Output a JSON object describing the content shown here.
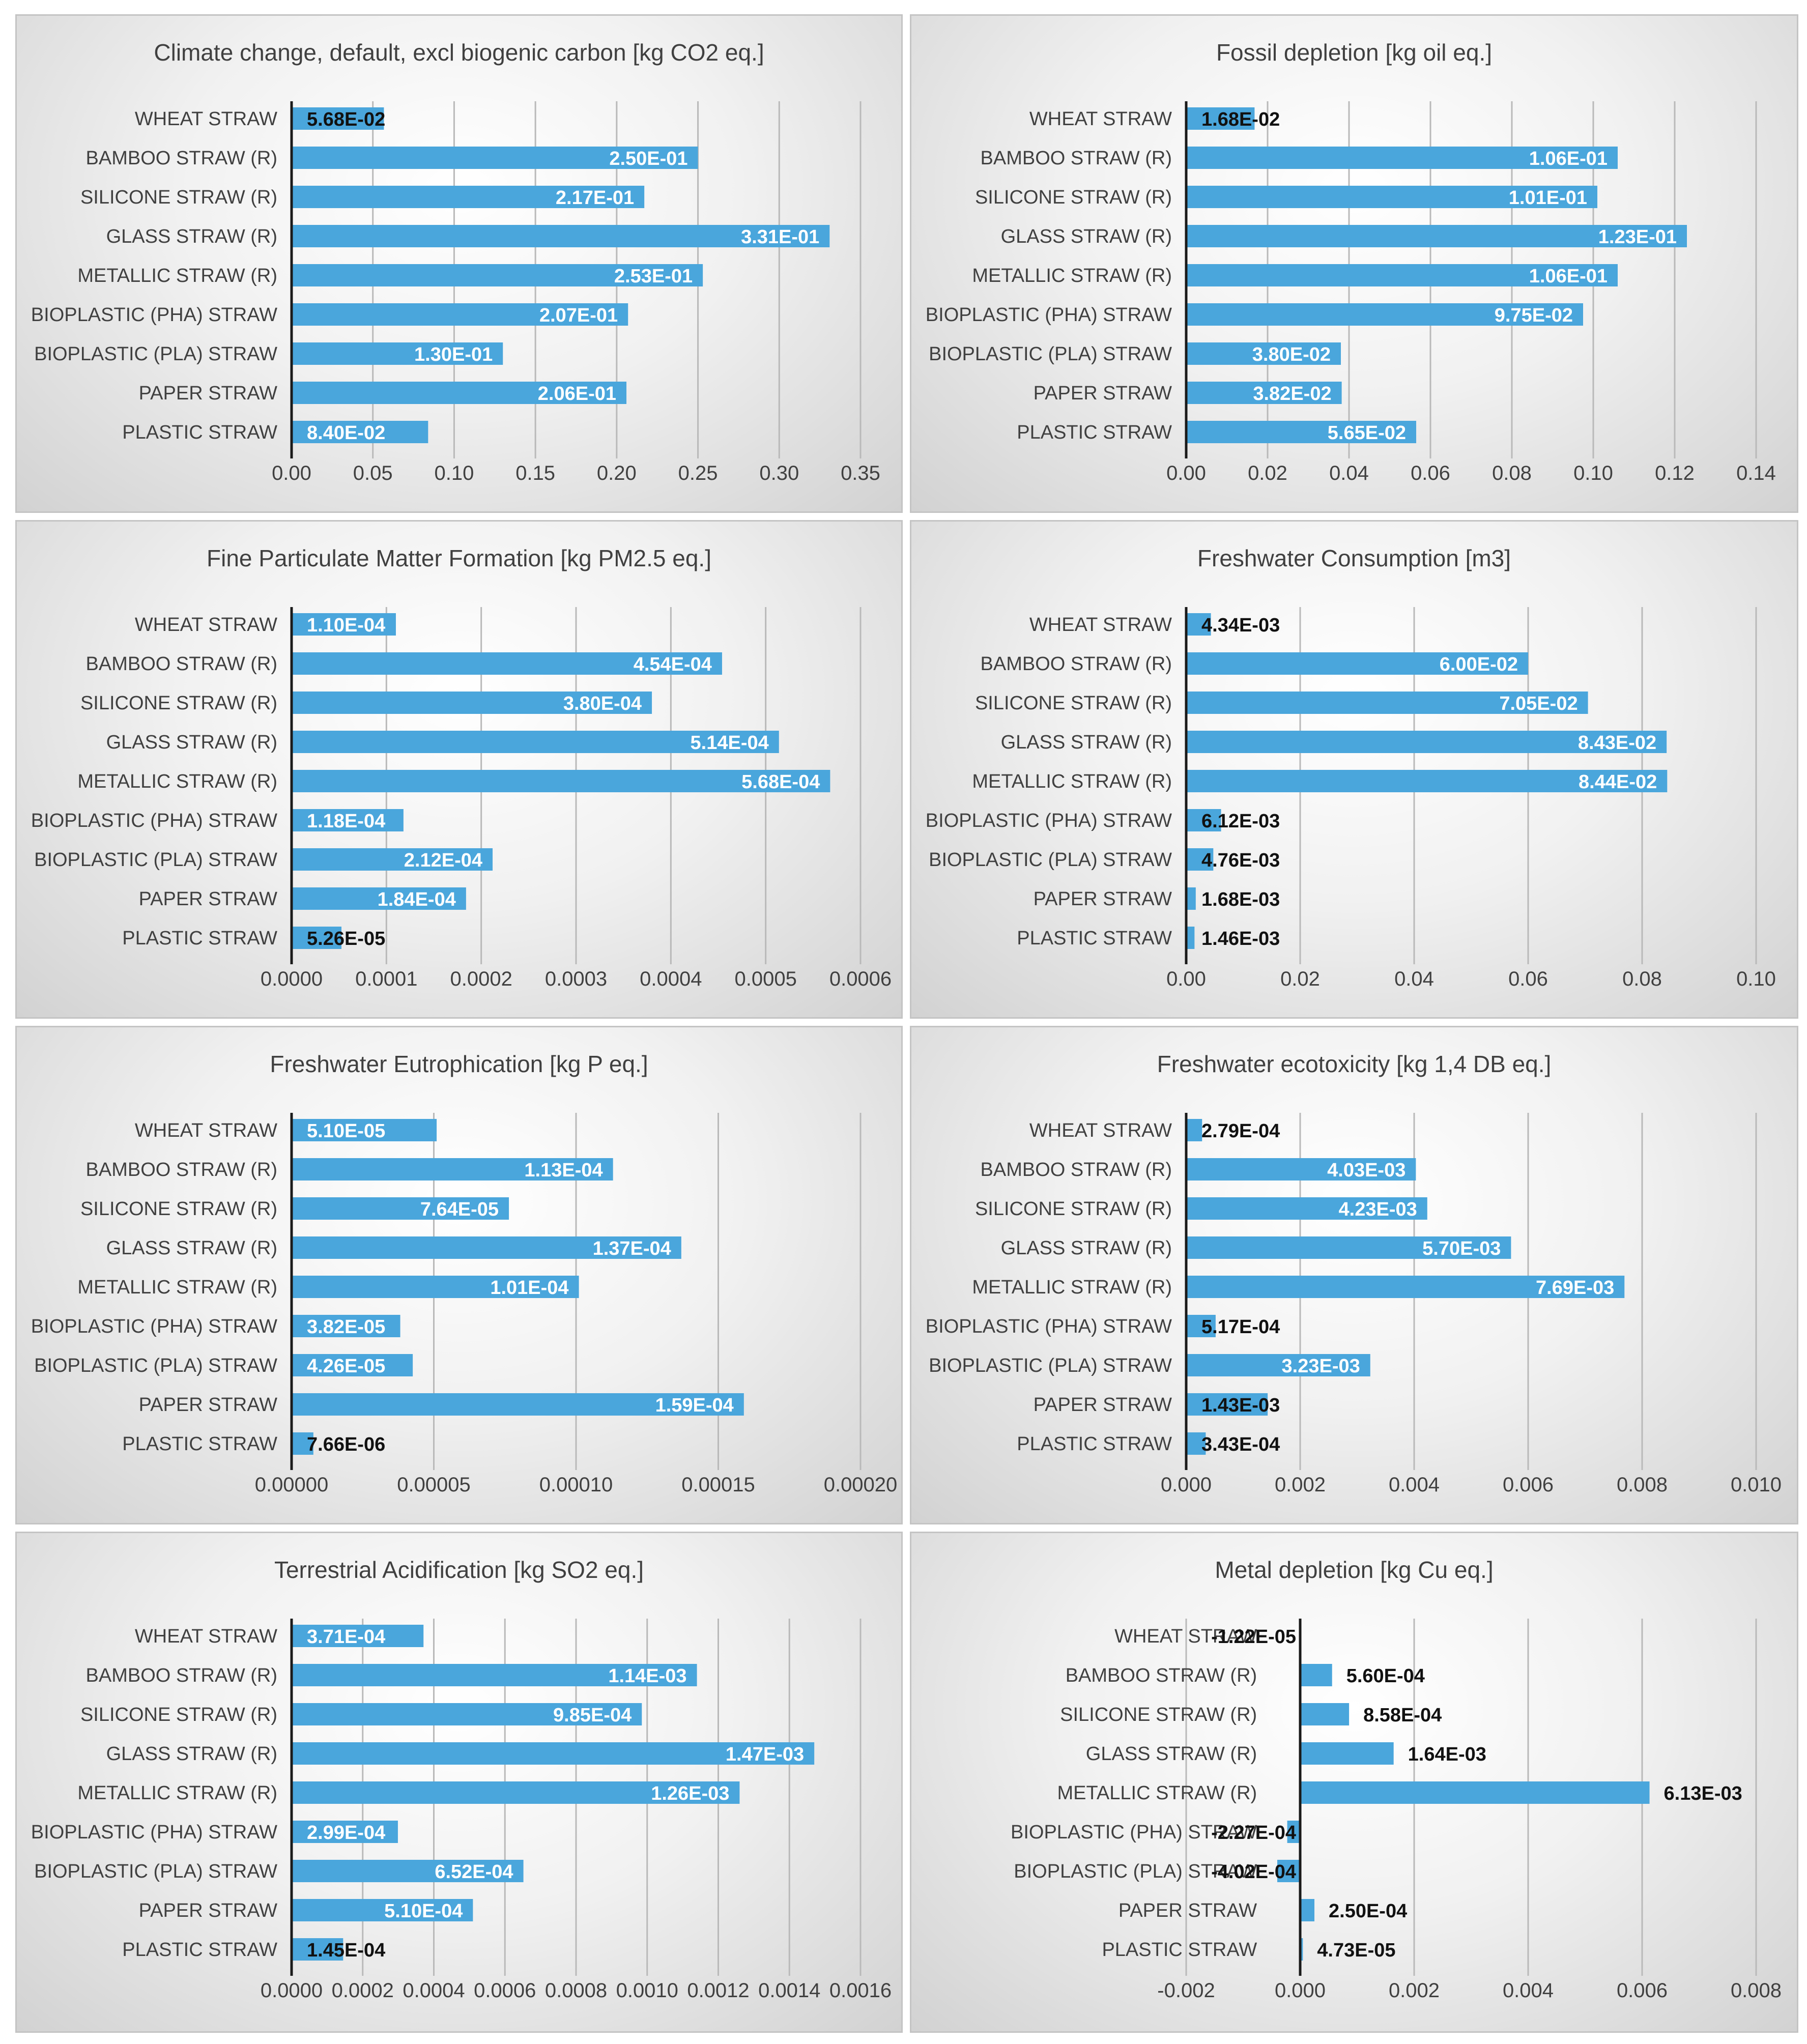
{
  "colors": {
    "bar": "#4aa6dc",
    "grid": "#b9b9b9",
    "axis": "#1a1a1a",
    "text": "#404040",
    "label_dark": "#111111",
    "label_light": "#ffffff"
  },
  "chart_data": [
    {
      "type": "bar",
      "orientation": "horizontal",
      "title": "Climate change, default, excl biogenic carbon [kg CO2 eq.]",
      "categories": [
        "WHEAT STRAW",
        "BAMBOO STRAW (R)",
        "SILICONE STRAW (R)",
        "GLASS STRAW (R)",
        "METALLIC STRAW (R)",
        "BIOPLASTIC (PHA) STRAW",
        "BIOPLASTIC (PLA) STRAW",
        "PAPER STRAW",
        "PLASTIC STRAW"
      ],
      "values": [
        0.0568,
        0.25,
        0.217,
        0.331,
        0.253,
        0.207,
        0.13,
        0.206,
        0.084
      ],
      "labels": [
        "5.68E-02",
        "2.50E-01",
        "2.17E-01",
        "3.31E-01",
        "2.53E-01",
        "2.07E-01",
        "1.30E-01",
        "2.06E-01",
        "8.40E-02"
      ],
      "ticks": [
        0,
        0.05,
        0.1,
        0.15,
        0.2,
        0.25,
        0.3,
        0.35
      ],
      "tick_labels": [
        "0.00",
        "0.05",
        "0.10",
        "0.15",
        "0.20",
        "0.25",
        "0.30",
        "0.35"
      ],
      "xlim": [
        0,
        0.35
      ]
    },
    {
      "type": "bar",
      "orientation": "horizontal",
      "title": "Fossil depletion [kg oil eq.]",
      "categories": [
        "WHEAT STRAW",
        "BAMBOO STRAW (R)",
        "SILICONE STRAW (R)",
        "GLASS STRAW (R)",
        "METALLIC STRAW (R)",
        "BIOPLASTIC (PHA) STRAW",
        "BIOPLASTIC (PLA) STRAW",
        "PAPER STRAW",
        "PLASTIC STRAW"
      ],
      "values": [
        0.0168,
        0.106,
        0.101,
        0.123,
        0.106,
        0.0975,
        0.038,
        0.0382,
        0.0565
      ],
      "labels": [
        "1.68E-02",
        "1.06E-01",
        "1.01E-01",
        "1.23E-01",
        "1.06E-01",
        "9.75E-02",
        "3.80E-02",
        "3.82E-02",
        "5.65E-02"
      ],
      "ticks": [
        0,
        0.02,
        0.04,
        0.06,
        0.08,
        0.1,
        0.12,
        0.14
      ],
      "tick_labels": [
        "0.00",
        "0.02",
        "0.04",
        "0.06",
        "0.08",
        "0.10",
        "0.12",
        "0.14"
      ],
      "xlim": [
        0,
        0.14
      ]
    },
    {
      "type": "bar",
      "orientation": "horizontal",
      "title": "Fine Particulate Matter Formation [kg PM2.5 eq.]",
      "categories": [
        "WHEAT STRAW",
        "BAMBOO STRAW (R)",
        "SILICONE STRAW (R)",
        "GLASS STRAW (R)",
        "METALLIC STRAW (R)",
        "BIOPLASTIC (PHA) STRAW",
        "BIOPLASTIC (PLA) STRAW",
        "PAPER STRAW",
        "PLASTIC STRAW"
      ],
      "values": [
        0.00011,
        0.000454,
        0.00038,
        0.000514,
        0.000568,
        0.000118,
        0.000212,
        0.000184,
        5.26e-05
      ],
      "labels": [
        "1.10E-04",
        "4.54E-04",
        "3.80E-04",
        "5.14E-04",
        "5.68E-04",
        "1.18E-04",
        "2.12E-04",
        "1.84E-04",
        "5.26E-05"
      ],
      "ticks": [
        0,
        0.0001,
        0.0002,
        0.0003,
        0.0004,
        0.0005,
        0.0006
      ],
      "tick_labels": [
        "0.0000",
        "0.0001",
        "0.0002",
        "0.0003",
        "0.0004",
        "0.0005",
        "0.0006"
      ],
      "xlim": [
        0,
        0.0006
      ]
    },
    {
      "type": "bar",
      "orientation": "horizontal",
      "title": "Freshwater Consumption [m3]",
      "categories": [
        "WHEAT STRAW",
        "BAMBOO STRAW (R)",
        "SILICONE STRAW (R)",
        "GLASS STRAW (R)",
        "METALLIC STRAW (R)",
        "BIOPLASTIC (PHA) STRAW",
        "BIOPLASTIC (PLA) STRAW",
        "PAPER STRAW",
        "PLASTIC STRAW"
      ],
      "values": [
        0.00434,
        0.06,
        0.0705,
        0.0843,
        0.0844,
        0.00612,
        0.00476,
        0.00168,
        0.00146
      ],
      "labels": [
        "4.34E-03",
        "6.00E-02",
        "7.05E-02",
        "8.43E-02",
        "8.44E-02",
        "6.12E-03",
        "4.76E-03",
        "1.68E-03",
        "1.46E-03"
      ],
      "ticks": [
        0,
        0.02,
        0.04,
        0.06,
        0.08,
        0.1
      ],
      "tick_labels": [
        "0.00",
        "0.02",
        "0.04",
        "0.06",
        "0.08",
        "0.10"
      ],
      "xlim": [
        0,
        0.1
      ]
    },
    {
      "type": "bar",
      "orientation": "horizontal",
      "title": "Freshwater Eutrophication [kg P eq.]",
      "categories": [
        "WHEAT STRAW",
        "BAMBOO STRAW (R)",
        "SILICONE STRAW (R)",
        "GLASS STRAW (R)",
        "METALLIC STRAW (R)",
        "BIOPLASTIC (PHA) STRAW",
        "BIOPLASTIC (PLA) STRAW",
        "PAPER STRAW",
        "PLASTIC STRAW"
      ],
      "values": [
        5.1e-05,
        0.000113,
        7.64e-05,
        0.000137,
        0.000101,
        3.82e-05,
        4.26e-05,
        0.000159,
        7.66e-06
      ],
      "labels": [
        "5.10E-05",
        "1.13E-04",
        "7.64E-05",
        "1.37E-04",
        "1.01E-04",
        "3.82E-05",
        "4.26E-05",
        "1.59E-04",
        "7.66E-06"
      ],
      "ticks": [
        0,
        5e-05,
        0.0001,
        0.00015,
        0.0002
      ],
      "tick_labels": [
        "0.00000",
        "0.00005",
        "0.00010",
        "0.00015",
        "0.00020"
      ],
      "xlim": [
        0,
        0.0002
      ]
    },
    {
      "type": "bar",
      "orientation": "horizontal",
      "title": "Freshwater ecotoxicity [kg 1,4 DB eq.]",
      "categories": [
        "WHEAT STRAW",
        "BAMBOO STRAW (R)",
        "SILICONE STRAW (R)",
        "GLASS STRAW (R)",
        "METALLIC STRAW (R)",
        "BIOPLASTIC (PHA) STRAW",
        "BIOPLASTIC (PLA) STRAW",
        "PAPER STRAW",
        "PLASTIC STRAW"
      ],
      "values": [
        0.000279,
        0.00403,
        0.00423,
        0.0057,
        0.00769,
        0.000517,
        0.00323,
        0.00143,
        0.000343
      ],
      "labels": [
        "2.79E-04",
        "4.03E-03",
        "4.23E-03",
        "5.70E-03",
        "7.69E-03",
        "5.17E-04",
        "3.23E-03",
        "1.43E-03",
        "3.43E-04"
      ],
      "ticks": [
        0,
        0.002,
        0.004,
        0.006,
        0.008,
        0.01
      ],
      "tick_labels": [
        "0.000",
        "0.002",
        "0.004",
        "0.006",
        "0.008",
        "0.010"
      ],
      "xlim": [
        0,
        0.01
      ]
    },
    {
      "type": "bar",
      "orientation": "horizontal",
      "title": "Terrestrial Acidification [kg SO2 eq.]",
      "categories": [
        "WHEAT STRAW",
        "BAMBOO STRAW (R)",
        "SILICONE STRAW (R)",
        "GLASS STRAW (R)",
        "METALLIC STRAW (R)",
        "BIOPLASTIC (PHA) STRAW",
        "BIOPLASTIC (PLA) STRAW",
        "PAPER STRAW",
        "PLASTIC STRAW"
      ],
      "values": [
        0.000371,
        0.00114,
        0.000985,
        0.00147,
        0.00126,
        0.000299,
        0.000652,
        0.00051,
        0.000145
      ],
      "labels": [
        "3.71E-04",
        "1.14E-03",
        "9.85E-04",
        "1.47E-03",
        "1.26E-03",
        "2.99E-04",
        "6.52E-04",
        "5.10E-04",
        "1.45E-04"
      ],
      "ticks": [
        0,
        0.0002,
        0.0004,
        0.0006,
        0.0008,
        0.001,
        0.0012,
        0.0014,
        0.0016
      ],
      "tick_labels": [
        "0.0000",
        "0.0002",
        "0.0004",
        "0.0006",
        "0.0008",
        "0.0010",
        "0.0012",
        "0.0014",
        "0.0016"
      ],
      "xlim": [
        0,
        0.0016
      ]
    },
    {
      "type": "bar",
      "orientation": "horizontal",
      "title": "Metal depletion [kg Cu eq.]",
      "categories": [
        "WHEAT STRAW",
        "BAMBOO STRAW (R)",
        "SILICONE STRAW (R)",
        "GLASS STRAW (R)",
        "METALLIC STRAW (R)",
        "BIOPLASTIC (PHA) STRAW",
        "BIOPLASTIC (PLA) STRAW",
        "PAPER STRAW",
        "PLASTIC STRAW"
      ],
      "values": [
        -1.22e-05,
        0.00056,
        0.000858,
        0.00164,
        0.00613,
        -0.000227,
        -0.000402,
        0.00025,
        4.73e-05
      ],
      "labels": [
        "-1.22E-05",
        "5.60E-04",
        "8.58E-04",
        "1.64E-03",
        "6.13E-03",
        "-2.27E-04",
        "-4.02E-04",
        "2.50E-04",
        "4.73E-05"
      ],
      "ticks": [
        -0.002,
        0,
        0.002,
        0.004,
        0.006,
        0.008
      ],
      "tick_labels": [
        "-0.002",
        "0.000",
        "0.002",
        "0.004",
        "0.006",
        "0.008"
      ],
      "xlim": [
        -0.002,
        0.008
      ]
    }
  ]
}
